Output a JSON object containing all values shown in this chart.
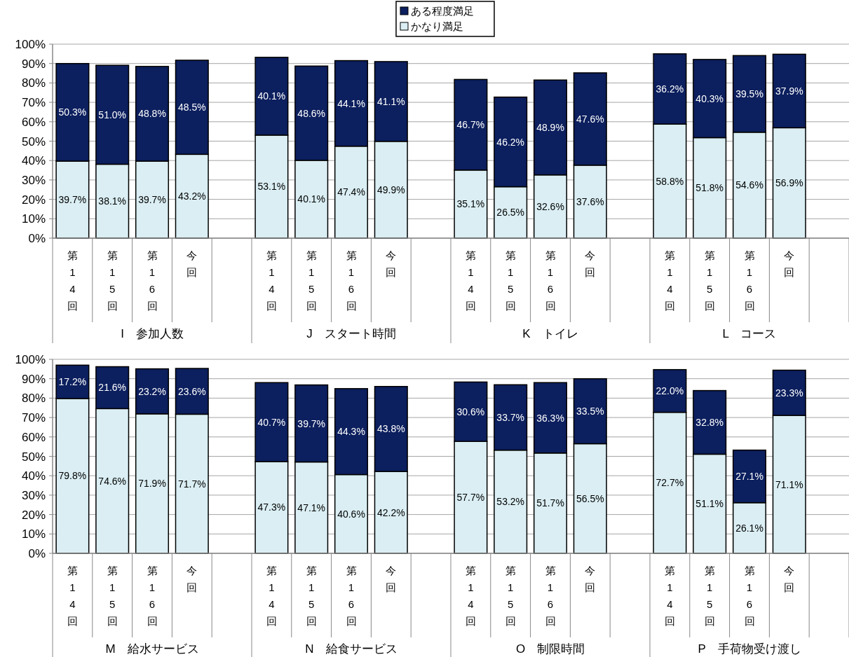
{
  "chart_data": [
    {
      "type": "bar",
      "stacked": true,
      "grid": "y",
      "legend": "top",
      "categories": [
        "第14回",
        "第15回",
        "第16回",
        "今回",
        null,
        "第14回",
        "第15回",
        "第16回",
        "今回",
        null,
        "第14回",
        "第15回",
        "第16回",
        "今回",
        null,
        "第14回",
        "第15回",
        "第16回",
        "今回",
        null
      ],
      "ylim": [
        0,
        100
      ],
      "yticks": [
        {
          "value": 0,
          "label": "0%"
        },
        {
          "value": 10,
          "label": "10%"
        },
        {
          "value": 20,
          "label": "20%"
        },
        {
          "value": 30,
          "label": "30%"
        },
        {
          "value": 40,
          "label": "40%"
        },
        {
          "value": 50,
          "label": "50%"
        },
        {
          "value": 60,
          "label": "60%"
        },
        {
          "value": 70,
          "label": "70%"
        },
        {
          "value": 80,
          "label": "80%"
        },
        {
          "value": 90,
          "label": "90%"
        },
        {
          "value": 100,
          "label": "100%"
        }
      ],
      "annotations": [
        "I　参加人数",
        "J　スタート時間",
        "K　トイレ",
        "L　コース"
      ],
      "series": [
        {
          "name": "かなり満足",
          "color": "#daeef3",
          "values": [
            39.7,
            38.1,
            39.7,
            43.2,
            null,
            53.1,
            40.1,
            47.4,
            49.9,
            null,
            35.1,
            26.5,
            32.6,
            37.6,
            null,
            58.8,
            51.8,
            54.6,
            56.9,
            null
          ],
          "value_labels": [
            "39.7%",
            "38.1%",
            "39.7%",
            "43.2%",
            null,
            "53.1%",
            "40.1%",
            "47.4%",
            "49.9%",
            null,
            "35.1%",
            "26.5%",
            "32.6%",
            "37.6%",
            null,
            "58.8%",
            "51.8%",
            "54.6%",
            "56.9%",
            null
          ]
        },
        {
          "name": "ある程度満足",
          "color": "#0c1f5e",
          "values": [
            50.3,
            51.0,
            48.8,
            48.5,
            null,
            40.1,
            48.6,
            44.1,
            41.1,
            null,
            46.7,
            46.2,
            48.9,
            47.6,
            null,
            36.2,
            40.3,
            39.5,
            37.9,
            null
          ],
          "value_labels": [
            "50.3%",
            "51.0%",
            "48.8%",
            "48.5%",
            null,
            "40.1%",
            "48.6%",
            "44.1%",
            "41.1%",
            null,
            "46.7%",
            "46.2%",
            "48.9%",
            "47.6%",
            null,
            "36.2%",
            "40.3%",
            "39.5%",
            "37.9%",
            null
          ]
        }
      ]
    },
    {
      "type": "bar",
      "stacked": true,
      "grid": "y",
      "categories": [
        "第14回",
        "第15回",
        "第16回",
        "今回",
        null,
        "第14回",
        "第15回",
        "第16回",
        "今回",
        null,
        "第14回",
        "第15回",
        "第16回",
        "今回",
        null,
        "第14回",
        "第15回",
        "第16回",
        "今回",
        null
      ],
      "ylim": [
        0,
        100
      ],
      "yticks": [
        {
          "value": 0,
          "label": "0%"
        },
        {
          "value": 10,
          "label": "10%"
        },
        {
          "value": 20,
          "label": "20%"
        },
        {
          "value": 30,
          "label": "30%"
        },
        {
          "value": 40,
          "label": "40%"
        },
        {
          "value": 50,
          "label": "50%"
        },
        {
          "value": 60,
          "label": "60%"
        },
        {
          "value": 70,
          "label": "70%"
        },
        {
          "value": 80,
          "label": "80%"
        },
        {
          "value": 90,
          "label": "90%"
        },
        {
          "value": 100,
          "label": "100%"
        }
      ],
      "annotations": [
        "M　給水サービス",
        "N　給食サービス",
        "O　制限時間",
        "P　手荷物受け渡し"
      ],
      "series": [
        {
          "color": "#daeef3",
          "values": [
            79.8,
            74.6,
            71.9,
            71.7,
            null,
            47.3,
            47.1,
            40.6,
            42.2,
            null,
            57.7,
            53.2,
            51.7,
            56.5,
            null,
            72.7,
            51.1,
            26.1,
            71.1,
            null
          ],
          "value_labels": [
            "79.8%",
            "74.6%",
            "71.9%",
            "71.7%",
            null,
            "47.3%",
            "47.1%",
            "40.6%",
            "42.2%",
            null,
            "57.7%",
            "53.2%",
            "51.7%",
            "56.5%",
            null,
            "72.7%",
            "51.1%",
            "26.1%",
            "71.1%",
            null
          ]
        },
        {
          "color": "#0c1f5e",
          "values": [
            17.2,
            21.6,
            23.2,
            23.6,
            null,
            40.7,
            39.7,
            44.3,
            43.8,
            null,
            30.6,
            33.7,
            36.3,
            33.5,
            null,
            22.0,
            32.8,
            27.1,
            23.3,
            null
          ],
          "value_labels": [
            "17.2%",
            "21.6%",
            "23.2%",
            "23.6%",
            null,
            "40.7%",
            "39.7%",
            "44.3%",
            "43.8%",
            null,
            "30.6%",
            "33.7%",
            "36.3%",
            "33.5%",
            null,
            "22.0%",
            "32.8%",
            "27.1%",
            "23.3%",
            null
          ]
        }
      ]
    }
  ]
}
